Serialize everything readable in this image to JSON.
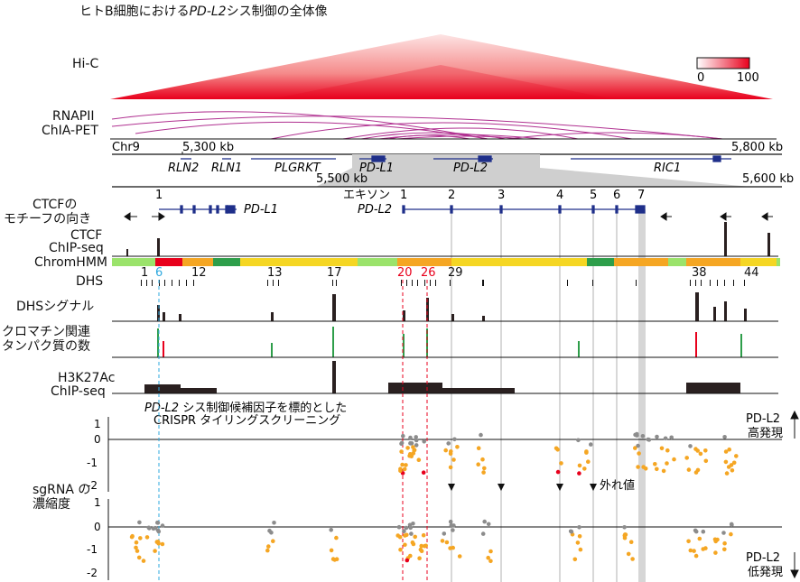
{
  "title": {
    "prefix": "ヒトB細胞における",
    "gene": "PD-L2",
    "suffix": "シス制御の全体像"
  },
  "tracks": {
    "hic": "Hi-C",
    "rnapii_1": "RNAPII",
    "rnapii_2": "ChIA-PET",
    "ctcf_motif_1": "CTCFの",
    "ctcf_motif_2": "モチーフの向き",
    "ctcf_chip_1": "CTCF",
    "ctcf_chip_2": "ChIP-seq",
    "chromhmm": "ChromHMM",
    "dhs": "DHS",
    "dhs_signal": "DHSシグナル",
    "chromatin_1": "クロマチン関連",
    "chromatin_2": "タンパク質の数",
    "h3k27ac_1": "H3K27Ac",
    "h3k27ac_2": "ChIP-seq",
    "sgrna_1": "sgRNA の",
    "sgrna_2": "濃縮度"
  },
  "colorbar": {
    "min": "0",
    "max": "100",
    "low_color": "#ffffff",
    "high_color": "#e8001c"
  },
  "genome": {
    "chrom": "Chr9",
    "coord_left": "5,300 kb",
    "coord_right": "5,800 kb",
    "zoom_left": "5,500 kb",
    "zoom_right": "5,600 kb",
    "genes": [
      "RLN2",
      "RLN1",
      "PLGRKT",
      "PD-L1",
      "PD-L2",
      "RIC1"
    ]
  },
  "zoom_genes": {
    "pdl1": "PD-L1",
    "pdl2": "PD-L2",
    "exon_label": "エキソン",
    "exons": [
      "1",
      "2",
      "3",
      "4",
      "5",
      "6",
      "7"
    ],
    "pdl1_exon": "1"
  },
  "dhs_labels": [
    {
      "text": "1",
      "color": "#111111"
    },
    {
      "text": "6",
      "color": "#2ea8df"
    },
    {
      "text": "12",
      "color": "#111111"
    },
    {
      "text": "13",
      "color": "#111111"
    },
    {
      "text": "17",
      "color": "#111111"
    },
    {
      "text": "20",
      "color": "#e8001c"
    },
    {
      "text": "26",
      "color": "#e8001c"
    },
    {
      "text": "29",
      "color": "#111111"
    },
    {
      "text": "38",
      "color": "#111111"
    },
    {
      "text": "44",
      "color": "#111111"
    }
  ],
  "crispr": {
    "title_gene": "PD-L2",
    "title_rest": " シス制御候補因子を標的とした",
    "subtitle": "CRISPR タイリングスクリーニング",
    "high_1": "PD-L2",
    "high_2": "高発現",
    "low_1": "PD-L2",
    "low_2": "低発現",
    "outlier": "外れ値",
    "ticks": [
      "1",
      "0",
      "-1",
      "-2"
    ]
  },
  "colors": {
    "red": "#e8001c",
    "orange": "#f5a623",
    "gray": "#8c8c8c",
    "navy": "#1f2f8a",
    "purple": "#b03090",
    "green": "#2e9e4a",
    "blue": "#2ea8df"
  }
}
